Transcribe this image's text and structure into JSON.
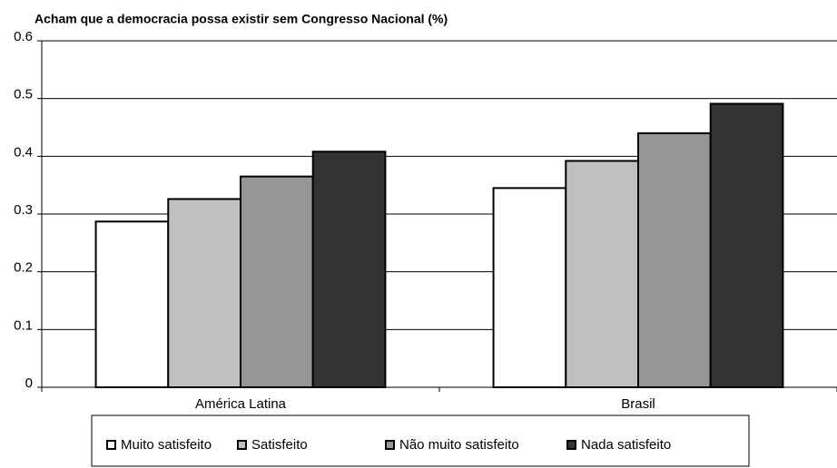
{
  "chart_data": {
    "type": "bar",
    "title": "Acham que a democracia possa existir sem Congresso Nacional (%)",
    "categories": [
      "América Latina",
      "Brasil"
    ],
    "series": [
      {
        "name": "Muito satisfeito",
        "color": "#ffffff",
        "values": [
          0.287,
          0.345
        ]
      },
      {
        "name": "Satisfeito",
        "color": "#c0c0c0",
        "values": [
          0.326,
          0.392
        ]
      },
      {
        "name": "Não muito satisfeito",
        "color": "#969696",
        "values": [
          0.365,
          0.44
        ]
      },
      {
        "name": "Nada satisfeito",
        "color": "#333333",
        "values": [
          0.408,
          0.491
        ]
      }
    ],
    "ylim": [
      0,
      0.6
    ],
    "yticks": [
      0,
      0.1,
      0.2,
      0.3,
      0.4,
      0.5,
      0.6
    ],
    "grid": true,
    "legend": "bottom"
  }
}
